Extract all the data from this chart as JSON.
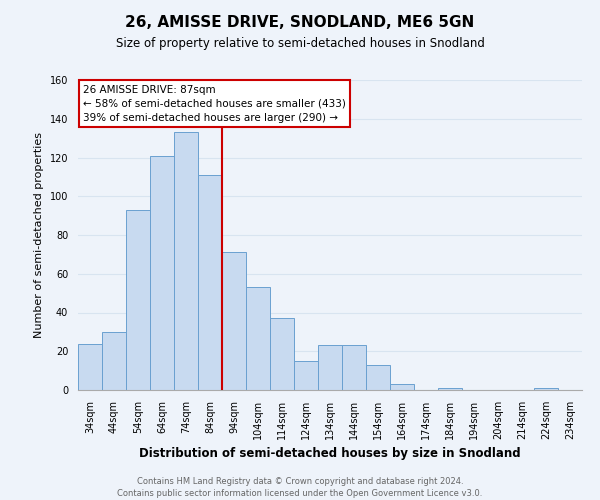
{
  "title": "26, AMISSE DRIVE, SNODLAND, ME6 5GN",
  "subtitle": "Size of property relative to semi-detached houses in Snodland",
  "xlabel": "Distribution of semi-detached houses by size in Snodland",
  "ylabel": "Number of semi-detached properties",
  "bar_labels": [
    "34sqm",
    "44sqm",
    "54sqm",
    "64sqm",
    "74sqm",
    "84sqm",
    "94sqm",
    "104sqm",
    "114sqm",
    "124sqm",
    "134sqm",
    "144sqm",
    "154sqm",
    "164sqm",
    "174sqm",
    "184sqm",
    "194sqm",
    "204sqm",
    "214sqm",
    "224sqm",
    "234sqm"
  ],
  "bar_values": [
    24,
    30,
    93,
    121,
    133,
    111,
    71,
    53,
    37,
    15,
    23,
    23,
    13,
    3,
    0,
    1,
    0,
    0,
    0,
    1,
    0
  ],
  "bar_color": "#c8daf0",
  "bar_edge_color": "#6aa0d0",
  "vline_color": "#cc0000",
  "vline_x": 5.5,
  "ylim": [
    0,
    160
  ],
  "yticks": [
    0,
    20,
    40,
    60,
    80,
    100,
    120,
    140,
    160
  ],
  "annotation_title": "26 AMISSE DRIVE: 87sqm",
  "annotation_line1": "← 58% of semi-detached houses are smaller (433)",
  "annotation_line2": "39% of semi-detached houses are larger (290) →",
  "annotation_box_facecolor": "#ffffff",
  "annotation_box_edgecolor": "#cc0000",
  "footer_line1": "Contains HM Land Registry data © Crown copyright and database right 2024.",
  "footer_line2": "Contains public sector information licensed under the Open Government Licence v3.0.",
  "grid_color": "#d8e4f0",
  "bg_color": "#eef3fa",
  "title_fontsize": 11,
  "subtitle_fontsize": 8.5,
  "ylabel_fontsize": 8,
  "xlabel_fontsize": 8.5,
  "tick_fontsize": 7,
  "annot_fontsize": 7.5,
  "footer_fontsize": 6
}
